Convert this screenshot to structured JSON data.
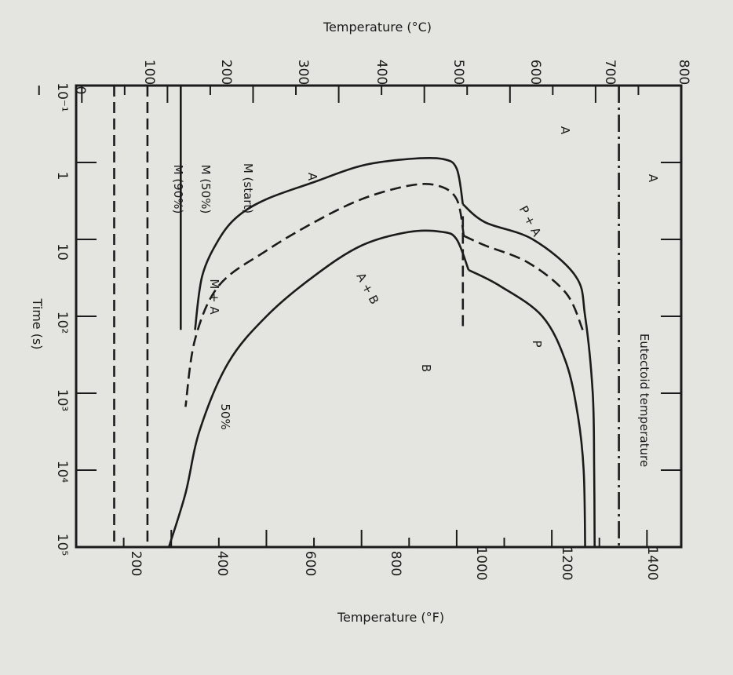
{
  "chart_data": {
    "type": "line",
    "title": "",
    "x_axis": {
      "label": "Time (s)",
      "scale": "log",
      "range": [
        0.1,
        100000
      ],
      "tick_labels": [
        "10⁻¹",
        "1",
        "10",
        "10²",
        "10³",
        "10⁴",
        "10⁵"
      ]
    },
    "y_axis_bottom": {
      "label": "Temperature (°F)",
      "range": [
        200,
        1472
      ],
      "tick_labels": [
        "200",
        "400",
        "600",
        "800",
        "1000",
        "1200",
        "1400"
      ]
    },
    "y_axis_top": {
      "label": "Temperature (°C)",
      "range": [
        0,
        800
      ],
      "tick_labels": [
        "0",
        "100",
        "200",
        "300",
        "400",
        "500",
        "600",
        "700",
        "800"
      ]
    },
    "series": [
      {
        "name": "",
        "style": "solid",
        "points": [
          [
            3.5,
            1013
          ],
          [
            1.2,
            1000
          ],
          [
            0.9,
            970
          ],
          [
            0.9,
            900
          ],
          [
            1.1,
            800
          ],
          [
            1.8,
            700
          ],
          [
            3,
            600
          ],
          [
            5,
            540
          ],
          [
            10,
            500
          ],
          [
            30,
            465
          ],
          [
            150,
            450
          ]
        ]
      },
      {
        "name": "",
        "style": "solid",
        "points": [
          [
            3.5,
            1013
          ],
          [
            6,
            1060
          ],
          [
            10,
            1160
          ],
          [
            30,
            1250
          ],
          [
            100,
            1270
          ],
          [
            1000,
            1286
          ],
          [
            10000,
            1289
          ],
          [
            100000,
            1290
          ]
        ]
      },
      {
        "name": "",
        "style": "dashed",
        "points": [
          [
            9,
            1015
          ],
          [
            3,
            1000
          ],
          [
            2,
            960
          ],
          [
            2,
            900
          ],
          [
            3,
            800
          ],
          [
            6,
            700
          ],
          [
            14,
            600
          ],
          [
            40,
            500
          ],
          [
            200,
            450
          ],
          [
            1500,
            430
          ]
        ]
      },
      {
        "name": "",
        "style": "dashed",
        "points": [
          [
            9,
            1015
          ],
          [
            12,
            1060
          ],
          [
            20,
            1150
          ],
          [
            50,
            1230
          ],
          [
            150,
            1265
          ]
        ]
      },
      {
        "name": "",
        "style": "solid",
        "points": [
          [
            25,
            1025
          ],
          [
            10,
            1000
          ],
          [
            8,
            970
          ],
          [
            8,
            900
          ],
          [
            12,
            800
          ],
          [
            30,
            700
          ],
          [
            100,
            600
          ],
          [
            400,
            520
          ],
          [
            3000,
            460
          ],
          [
            20000,
            430
          ],
          [
            100000,
            395
          ]
        ]
      },
      {
        "name": "",
        "style": "solid",
        "points": [
          [
            25,
            1025
          ],
          [
            40,
            1090
          ],
          [
            100,
            1180
          ],
          [
            400,
            1230
          ],
          [
            2000,
            1255
          ],
          [
            10000,
            1267
          ],
          [
            100000,
            1270
          ]
        ]
      },
      {
        "name": "M (start)",
        "style": "solid",
        "points": [
          [
            0.1,
            420
          ],
          [
            150,
            420
          ]
        ]
      },
      {
        "name": "M (50%)",
        "style": "dashed",
        "points": [
          [
            0.1,
            350
          ],
          [
            100000,
            350
          ]
        ]
      },
      {
        "name": "M (90%)",
        "style": "dashed",
        "points": [
          [
            0.1,
            280
          ],
          [
            100000,
            280
          ]
        ]
      },
      {
        "name": "Eutectoid temperature",
        "style": "dash-dot",
        "points": [
          [
            0.1,
            1341
          ],
          [
            100000,
            1341
          ]
        ]
      },
      {
        "name": "",
        "style": "dashed",
        "points": [
          [
            5,
            1013
          ],
          [
            150,
            1013
          ]
        ]
      }
    ],
    "annotations": [
      "A",
      "A",
      "A",
      "P",
      "P + A",
      "A + B",
      "B",
      "M + A",
      "50%",
      "Eutectoid temperature",
      "M (start)",
      "M (50%)",
      "M (90%)"
    ],
    "grid": false
  }
}
